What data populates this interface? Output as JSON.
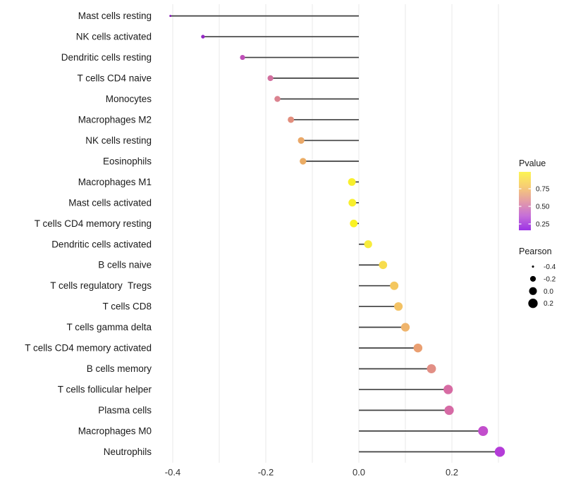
{
  "chart_data": {
    "type": "scatter",
    "style": "lollipop-horizontal",
    "title": "",
    "xlabel": "",
    "ylabel": "",
    "categories": [
      "Mast cells resting",
      "NK cells activated",
      "Dendritic cells resting",
      "T cells CD4 naive",
      "Monocytes",
      "Macrophages M2",
      "NK cells resting",
      "Eosinophils",
      "Macrophages M1",
      "Mast cells activated",
      "T cells CD4 memory resting",
      "Dendritic cells activated",
      "B cells naive",
      "T cells regulatory  Tregs",
      "T cells CD8",
      "T cells gamma delta",
      "T cells CD4 memory activated",
      "B cells memory",
      "T cells follicular helper",
      "Plasma cells",
      "Macrophages M0",
      "Neutrophils"
    ],
    "series": [
      {
        "name": "Pearson",
        "values": [
          -0.405,
          -0.335,
          -0.25,
          -0.19,
          -0.175,
          -0.146,
          -0.124,
          -0.12,
          -0.015,
          -0.014,
          -0.011,
          0.02,
          0.052,
          0.076,
          0.085,
          0.1,
          0.127,
          0.156,
          0.192,
          0.194,
          0.267,
          0.303
        ]
      }
    ],
    "point_colors": [
      "#8312b4",
      "#9428c4",
      "#bf4fb8",
      "#d2709f",
      "#db8390",
      "#e28e7d",
      "#eaa868",
      "#ebac64",
      "#f8ef2d",
      "#f8ef2d",
      "#faf223",
      "#f8ec3c",
      "#f7dc4d",
      "#f4c75f",
      "#f3c264",
      "#efb46c",
      "#ea9f71",
      "#e28f85",
      "#d76ba3",
      "#d66aa5",
      "#c24ecc",
      "#b43cd8"
    ],
    "x_tick_labels": [
      "-0.4",
      "-0.2",
      "0.0",
      "0.2"
    ],
    "x_tick_values": [
      -0.4,
      -0.2,
      0.0,
      0.2
    ],
    "x_minor_grid_step": 0.1,
    "xlim": [
      -0.44,
      0.335
    ],
    "size_encoding": "Pearson",
    "color_encoding": "Pvalue",
    "grid": "vertical-only",
    "legend_position": "right"
  },
  "legend": {
    "pvalue": {
      "title": "Pvalue",
      "tick_labels": [
        "0.75",
        "0.50",
        "0.25"
      ],
      "tick_values": [
        0.75,
        0.5,
        0.25
      ],
      "gradient_stops": [
        "#fcf553",
        "#f7cd74",
        "#e49da6",
        "#c66fd8",
        "#9c33e5"
      ]
    },
    "pearson": {
      "title": "Pearson",
      "entries": [
        {
          "label": "-0.4",
          "value": -0.4
        },
        {
          "label": "-0.2",
          "value": -0.2
        },
        {
          "label": "0.0",
          "value": 0.0
        },
        {
          "label": "0.2",
          "value": 0.2
        }
      ]
    }
  },
  "colors": {
    "background": "#ffffff",
    "grid": "#eaeaea",
    "stem": "#3f3f3f",
    "axis_text": "#333333",
    "label_text": "#1a1a1a",
    "legend_text": "#1a1a1a",
    "legend_dot": "#000000"
  }
}
